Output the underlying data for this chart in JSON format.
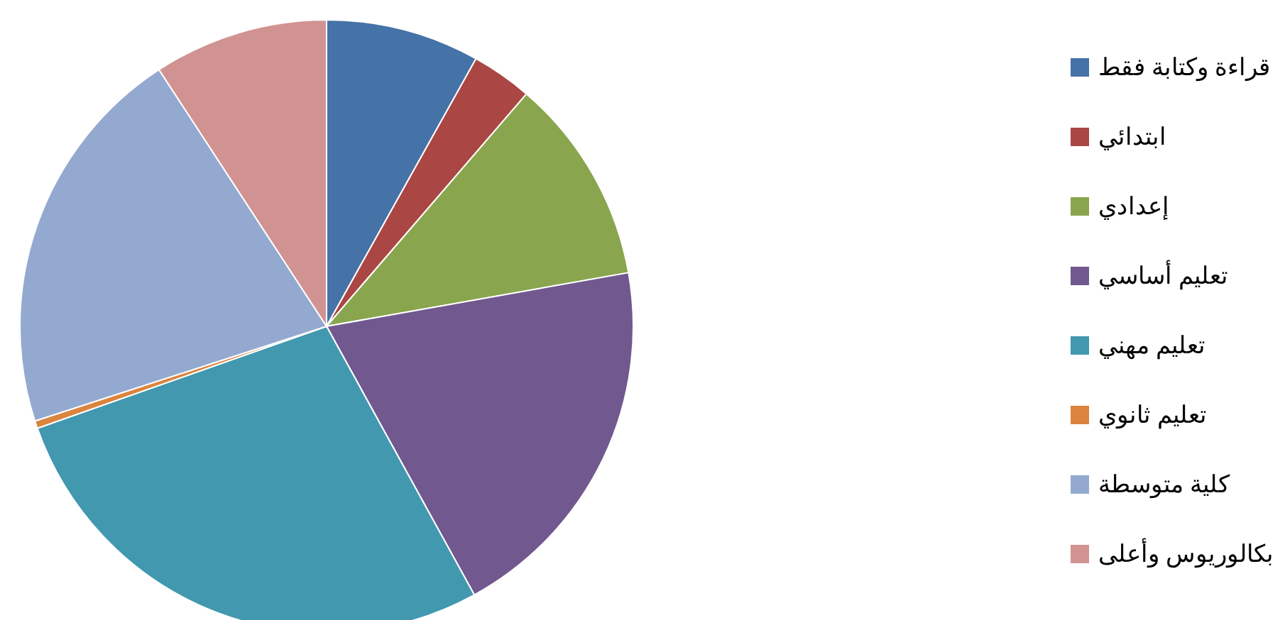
{
  "chart_data": {
    "type": "pie",
    "legend": "right",
    "categories": [
      "قراءة وكتابة فقط",
      "ابتدائي",
      "إعدادي",
      "تعليم أساسي",
      "تعليم مهني",
      "تعليم ثانوي",
      "كلية متوسطة",
      "بكالوريوس وأعلى"
    ],
    "values": [
      8.1,
      3.2,
      10.9,
      19.8,
      27.6,
      0.4,
      20.8,
      9.2
    ],
    "colors": [
      "#4572a7",
      "#aa4643",
      "#89a54e",
      "#71588f",
      "#4198af",
      "#db843d",
      "#93a9cf",
      "#d19392"
    ]
  }
}
